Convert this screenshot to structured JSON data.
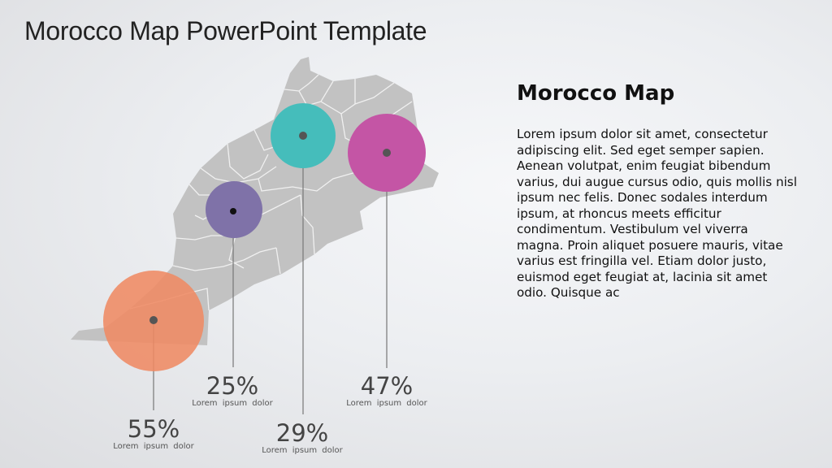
{
  "title": "Morocco Map PowerPoint Template",
  "panel": {
    "heading": "Morocco Map",
    "body": "Lorem ipsum dolor sit amet, consectetur adipiscing elit. Sed eget semper sapien. Aenean volutpat, enim feugiat bibendum varius, dui augue cursus odio, quis mollis nisl ipsum nec felis. Donec sodales interdum ipsum, at rhoncus meets efficitur condimentum. Vestibulum vel viverra magna. Proin aliquet posuere mauris, vitae varius est fringilla vel. Etiam dolor justo, euismod eget feugiat at, lacinia sit amet odio. Quisque ac"
  },
  "map": {
    "region": "Morocco",
    "fill": "#c2c2c2",
    "border": "#f2f2f2"
  },
  "markers": [
    {
      "value": "55%",
      "label": "Lorem ipsum dolor",
      "color": "#ef8a63"
    },
    {
      "value": "25%",
      "label": "Lorem ipsum dolor",
      "color": "#7f72a8"
    },
    {
      "value": "29%",
      "label": "Lorem ipsum dolor",
      "color": "#45bdbb"
    },
    {
      "value": "47%",
      "label": "Lorem ipsum dolor",
      "color": "#c455a5"
    }
  ]
}
